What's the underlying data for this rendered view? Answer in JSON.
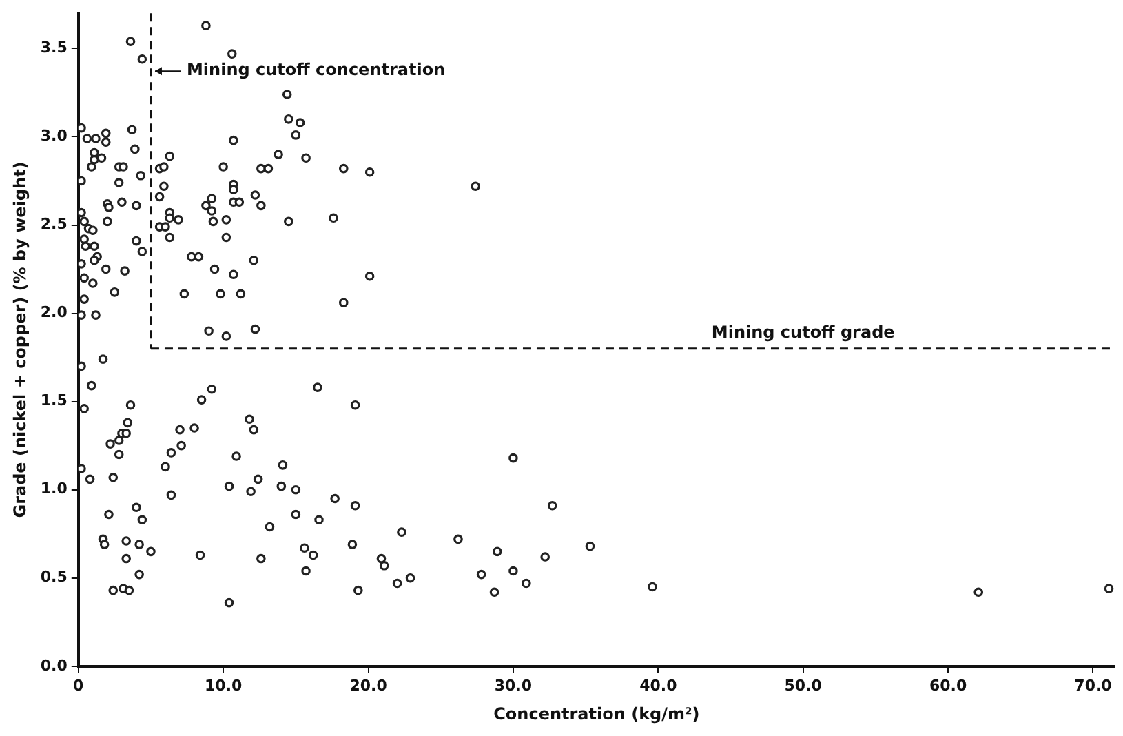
{
  "chart_data": {
    "type": "scatter",
    "xlabel": "Concentration (kg/m²)",
    "ylabel": "Grade (nickel + copper) (% by weight)",
    "xlim": [
      0,
      71.5
    ],
    "ylim": [
      0,
      3.7
    ],
    "xticks": [
      {
        "value": 0,
        "label": "0"
      },
      {
        "value": 10,
        "label": "10.0"
      },
      {
        "value": 20,
        "label": "20.0"
      },
      {
        "value": 30,
        "label": "30.0"
      },
      {
        "value": 40,
        "label": "40.0"
      },
      {
        "value": 50,
        "label": "50.0"
      },
      {
        "value": 60,
        "label": "60.0"
      },
      {
        "value": 70,
        "label": "70.0"
      }
    ],
    "yticks": [
      {
        "value": 0,
        "label": "0.0"
      },
      {
        "value": 0.5,
        "label": "0.5"
      },
      {
        "value": 1,
        "label": "1.0"
      },
      {
        "value": 1.5,
        "label": "1.5"
      },
      {
        "value": 2,
        "label": "2.0"
      },
      {
        "value": 2.5,
        "label": "2.5"
      },
      {
        "value": 3,
        "label": "3.0"
      },
      {
        "value": 3.5,
        "label": "3.5"
      }
    ],
    "grid": false,
    "legend": false,
    "marker": "circle",
    "ref_lines": [
      {
        "axis": "x",
        "value": 5,
        "label": "Mining cutoff concentration",
        "line_style": "dashed"
      },
      {
        "axis": "y",
        "value": 1.8,
        "label": "Mining cutoff grade",
        "line_style": "dashed"
      }
    ],
    "series": [
      {
        "color": "#222222",
        "x": [
          3.6,
          4.4,
          0.2,
          0.6,
          1.2,
          1.9,
          1.9,
          3.7,
          3.9,
          1.1,
          1.1,
          1.6,
          0.9,
          2.8,
          3.1,
          0.2,
          2.8,
          4.3,
          2.0,
          2.1,
          3.0,
          4.0,
          0.2,
          0.4,
          0.7,
          1.0,
          2.0,
          0.4,
          0.5,
          1.1,
          4.0,
          4.4,
          1.3,
          1.1,
          0.2,
          1.9,
          3.2,
          0.4,
          1.0,
          2.5,
          0.4,
          0.2,
          1.2,
          6.3,
          5.6,
          5.9,
          5.9,
          5.6,
          6.3,
          6.3,
          5.6,
          6.0,
          6.9,
          6.3,
          8.8,
          10.6,
          14.4,
          14.5,
          15.3,
          15.0,
          10.7,
          10.0,
          13.8,
          15.7,
          12.6,
          13.1,
          10.7,
          10.7,
          9.2,
          8.8,
          9.2,
          10.7,
          11.1,
          12.2,
          12.6,
          9.3,
          10.2,
          14.5,
          10.2,
          12.1,
          7.8,
          8.3,
          9.4,
          10.7,
          7.3,
          9.8,
          11.2,
          9.0,
          10.2,
          12.2,
          18.3,
          20.1,
          27.4,
          17.6,
          20.1,
          18.3,
          0.2,
          1.7,
          0.9,
          0.4,
          3.6,
          3.4,
          8.5,
          9.2,
          3.0,
          3.3,
          2.8,
          2.2,
          2.8,
          2.4,
          0.2,
          0.8,
          7.0,
          8.0,
          6.4,
          7.1,
          6.0,
          6.4,
          11.8,
          12.1,
          10.9,
          14.1,
          10.4,
          12.4,
          11.9,
          14.0,
          15.0,
          2.1,
          4.0,
          4.4,
          15.0,
          13.2,
          1.7,
          1.8,
          3.3,
          4.2,
          5.0,
          3.3,
          8.4,
          12.6,
          15.6,
          16.2,
          4.2,
          15.7,
          2.4,
          3.1,
          3.5,
          10.4,
          16.5,
          19.1,
          30.0,
          17.7,
          19.1,
          32.7,
          16.6,
          22.3,
          26.2,
          18.9,
          28.9,
          20.9,
          21.1,
          32.2,
          30.0,
          27.8,
          30.9,
          22.0,
          22.9,
          19.3,
          28.7,
          35.3,
          39.6,
          62.1,
          71.1
        ],
        "values": [
          3.54,
          3.44,
          3.05,
          2.99,
          2.99,
          3.02,
          2.97,
          3.04,
          2.93,
          2.91,
          2.87,
          2.88,
          2.83,
          2.83,
          2.83,
          2.75,
          2.74,
          2.78,
          2.62,
          2.6,
          2.63,
          2.61,
          2.57,
          2.52,
          2.48,
          2.47,
          2.52,
          2.42,
          2.38,
          2.38,
          2.41,
          2.35,
          2.32,
          2.3,
          2.28,
          2.25,
          2.24,
          2.2,
          2.17,
          2.12,
          2.08,
          1.99,
          1.99,
          2.89,
          2.82,
          2.83,
          2.72,
          2.66,
          2.57,
          2.54,
          2.49,
          2.49,
          2.53,
          2.43,
          3.63,
          3.47,
          3.24,
          3.1,
          3.08,
          3.01,
          2.98,
          2.83,
          2.9,
          2.88,
          2.82,
          2.82,
          2.73,
          2.7,
          2.65,
          2.61,
          2.58,
          2.63,
          2.63,
          2.67,
          2.61,
          2.52,
          2.53,
          2.52,
          2.43,
          2.3,
          2.32,
          2.32,
          2.25,
          2.22,
          2.11,
          2.11,
          2.11,
          1.9,
          1.87,
          1.91,
          2.82,
          2.8,
          2.72,
          2.54,
          2.21,
          2.06,
          1.7,
          1.74,
          1.59,
          1.46,
          1.48,
          1.38,
          1.51,
          1.57,
          1.32,
          1.32,
          1.28,
          1.26,
          1.2,
          1.07,
          1.12,
          1.06,
          1.34,
          1.35,
          1.21,
          1.25,
          1.13,
          0.97,
          1.4,
          1.34,
          1.19,
          1.14,
          1.02,
          1.06,
          0.99,
          1.02,
          1.0,
          0.86,
          0.9,
          0.83,
          0.86,
          0.79,
          0.72,
          0.69,
          0.71,
          0.69,
          0.65,
          0.61,
          0.63,
          0.61,
          0.67,
          0.63,
          0.52,
          0.54,
          0.43,
          0.44,
          0.43,
          0.36,
          1.58,
          1.48,
          1.18,
          0.95,
          0.91,
          0.91,
          0.83,
          0.76,
          0.72,
          0.69,
          0.65,
          0.61,
          0.57,
          0.62,
          0.54,
          0.52,
          0.47,
          0.47,
          0.5,
          0.43,
          0.42,
          0.68,
          0.45,
          0.42,
          0.44
        ]
      }
    ]
  }
}
